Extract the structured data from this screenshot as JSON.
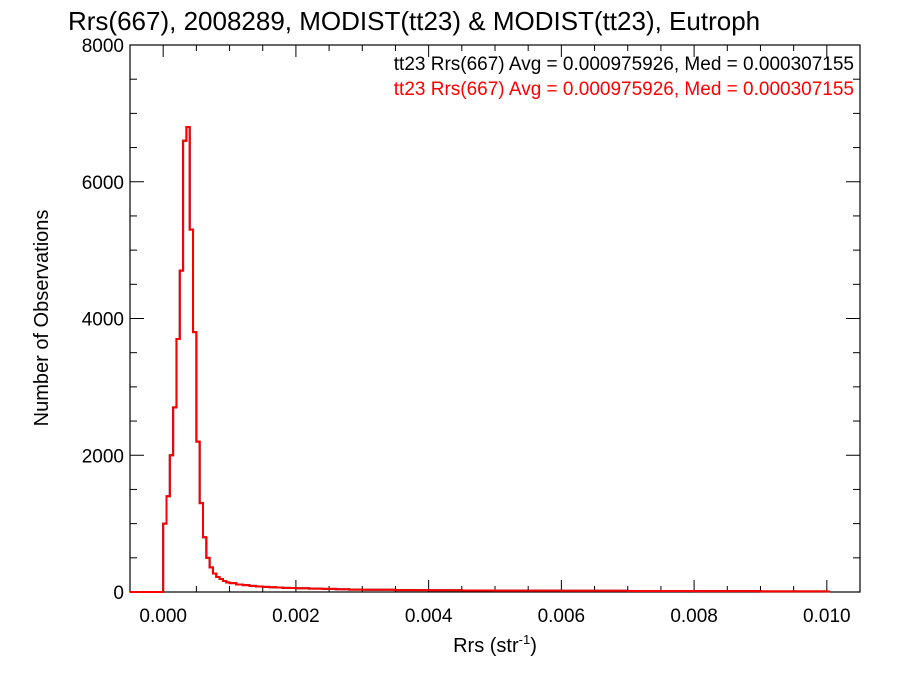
{
  "chart_data": {
    "type": "histogram",
    "title": "Rrs(667), 2008289, MODIST(tt23) & MODIST(tt23), Eutroph",
    "xlabel": "Rrs (str",
    "xlabel_superscript": "-1",
    "xlabel_suffix": ")",
    "ylabel": "Number of Observations",
    "xlim": [
      -0.0005,
      0.0105
    ],
    "ylim": [
      0,
      8000
    ],
    "x_ticks": [
      0.0,
      0.002,
      0.004,
      0.006,
      0.008,
      0.01
    ],
    "x_tick_labels": [
      "0.000",
      "0.002",
      "0.004",
      "0.006",
      "0.008",
      "0.010"
    ],
    "y_ticks": [
      0,
      2000,
      4000,
      6000,
      8000
    ],
    "y_tick_labels": [
      "0",
      "2000",
      "4000",
      "6000",
      "8000"
    ],
    "grid": false,
    "legend_position": "top-right",
    "series": [
      {
        "name": "tt23",
        "label": "tt23 Rrs(667) Avg = 0.000975926, Med = 0.000307155",
        "color": "#000000",
        "bin_width": 5e-05,
        "x": [
          -0.0005,
          -0.00045,
          -0.0004,
          -0.00035,
          -0.0003,
          -0.00025,
          -0.0002,
          -0.00015,
          -0.0001,
          -5e-05,
          0.0,
          5e-05,
          0.0001,
          0.00015,
          0.0002,
          0.00025,
          0.0003,
          0.00035,
          0.0004,
          0.00045,
          0.0005,
          0.00055,
          0.0006,
          0.00065,
          0.0007,
          0.00075,
          0.0008,
          0.00085,
          0.0009,
          0.00095,
          0.001,
          0.0011,
          0.0012,
          0.0013,
          0.0014,
          0.0015,
          0.0016,
          0.0017,
          0.0018,
          0.0019,
          0.002,
          0.0022,
          0.0024,
          0.0026,
          0.0028,
          0.003,
          0.0035,
          0.004,
          0.0045,
          0.005,
          0.006,
          0.007,
          0.008,
          0.009,
          0.01
        ],
        "values": [
          0,
          0,
          0,
          0,
          0,
          0,
          0,
          0,
          0,
          0,
          1000,
          1400,
          2000,
          2700,
          3700,
          4700,
          6600,
          6800,
          5300,
          3800,
          2200,
          1300,
          800,
          500,
          360,
          270,
          220,
          190,
          160,
          140,
          130,
          110,
          100,
          90,
          80,
          75,
          70,
          65,
          60,
          58,
          55,
          50,
          45,
          40,
          35,
          32,
          28,
          25,
          22,
          20,
          18,
          15,
          12,
          10,
          8
        ]
      },
      {
        "name": "tt23",
        "label": "tt23 Rrs(667) Avg = 0.000975926, Med = 0.000307155",
        "color": "#ff0000",
        "bin_width": 5e-05,
        "x": [
          -0.0005,
          -0.00045,
          -0.0004,
          -0.00035,
          -0.0003,
          -0.00025,
          -0.0002,
          -0.00015,
          -0.0001,
          -5e-05,
          0.0,
          5e-05,
          0.0001,
          0.00015,
          0.0002,
          0.00025,
          0.0003,
          0.00035,
          0.0004,
          0.00045,
          0.0005,
          0.00055,
          0.0006,
          0.00065,
          0.0007,
          0.00075,
          0.0008,
          0.00085,
          0.0009,
          0.00095,
          0.001,
          0.0011,
          0.0012,
          0.0013,
          0.0014,
          0.0015,
          0.0016,
          0.0017,
          0.0018,
          0.0019,
          0.002,
          0.0022,
          0.0024,
          0.0026,
          0.0028,
          0.003,
          0.0035,
          0.004,
          0.0045,
          0.005,
          0.006,
          0.007,
          0.008,
          0.009,
          0.01
        ],
        "values": [
          0,
          0,
          0,
          0,
          0,
          0,
          0,
          0,
          0,
          0,
          1000,
          1400,
          2000,
          2700,
          3700,
          4700,
          6600,
          6800,
          5300,
          3800,
          2200,
          1300,
          800,
          500,
          360,
          270,
          220,
          190,
          160,
          140,
          130,
          110,
          100,
          90,
          80,
          75,
          70,
          65,
          60,
          58,
          55,
          50,
          45,
          40,
          35,
          32,
          28,
          25,
          22,
          20,
          18,
          15,
          12,
          10,
          8
        ]
      }
    ]
  }
}
